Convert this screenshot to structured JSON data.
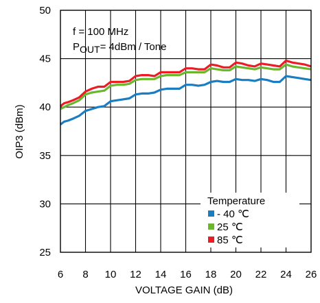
{
  "chart_data": {
    "type": "line",
    "xlabel": "VOLTAGE GAIN (dB)",
    "ylabel": "OIP3 (dBm)",
    "xlim": [
      6,
      26
    ],
    "ylim": [
      25,
      50
    ],
    "xticks": [
      "6",
      "8",
      "10",
      "12",
      "14",
      "16",
      "18",
      "20",
      "22",
      "24",
      "26"
    ],
    "yticks": [
      "25",
      "30",
      "35",
      "40",
      "45",
      "50"
    ],
    "grid": true,
    "annotations": {
      "line1": "f = 100 MHz",
      "line2_main": "P",
      "line2_sub": "OUT",
      "line2_rest": "= 4dBm / Tone"
    },
    "legend": {
      "title": "Temperature",
      "placement": "bottom-right"
    },
    "series": [
      {
        "name": "- 40 ℃",
        "color": "#1a7dc2",
        "x": [
          6,
          6.3,
          6.6,
          7,
          7.5,
          8,
          8.5,
          9,
          9.5,
          10,
          10.5,
          11,
          11.5,
          12,
          12.5,
          13,
          13.5,
          14,
          14.5,
          15,
          15.5,
          16,
          16.5,
          17,
          17.5,
          18,
          18.5,
          19,
          19.5,
          20,
          20.5,
          21,
          21.5,
          22,
          22.5,
          23,
          23.5,
          24,
          24.5,
          25,
          25.5,
          26
        ],
        "y": [
          38.2,
          38.5,
          38.6,
          38.8,
          39.1,
          39.6,
          39.8,
          40.0,
          40.1,
          40.6,
          40.7,
          40.8,
          40.9,
          41.3,
          41.4,
          41.4,
          41.5,
          41.8,
          41.9,
          41.9,
          41.9,
          42.3,
          42.3,
          42.2,
          42.3,
          42.6,
          42.7,
          42.6,
          42.6,
          42.9,
          42.8,
          42.8,
          42.7,
          42.9,
          42.8,
          42.6,
          42.6,
          43.2,
          43.1,
          43.0,
          42.9,
          42.8
        ]
      },
      {
        "name": "25 ℃",
        "color": "#6ab62d",
        "x": [
          6,
          6.3,
          6.6,
          7,
          7.5,
          8,
          8.5,
          9,
          9.5,
          10,
          10.5,
          11,
          11.5,
          12,
          12.5,
          13,
          13.5,
          14,
          14.5,
          15,
          15.5,
          16,
          16.5,
          17,
          17.5,
          18,
          18.5,
          19,
          19.5,
          20,
          20.5,
          21,
          21.5,
          22,
          22.5,
          23,
          23.5,
          24,
          24.5,
          25,
          25.5,
          26
        ],
        "y": [
          39.8,
          40.0,
          40.2,
          40.4,
          40.7,
          41.3,
          41.5,
          41.6,
          41.7,
          42.2,
          42.3,
          42.3,
          42.4,
          42.8,
          42.9,
          42.9,
          42.9,
          43.2,
          43.3,
          43.3,
          43.3,
          43.6,
          43.6,
          43.6,
          43.6,
          44.0,
          43.9,
          43.8,
          43.8,
          44.2,
          44.1,
          44.0,
          43.9,
          44.1,
          44.0,
          43.9,
          43.9,
          44.4,
          44.2,
          44.1,
          44.0,
          43.9
        ]
      },
      {
        "name": "85 ℃",
        "color": "#ec1c24",
        "x": [
          6,
          6.3,
          6.6,
          7,
          7.5,
          8,
          8.5,
          9,
          9.5,
          10,
          10.5,
          11,
          11.5,
          12,
          12.5,
          13,
          13.5,
          14,
          14.5,
          15,
          15.5,
          16,
          16.5,
          17,
          17.5,
          18,
          18.5,
          19,
          19.5,
          20,
          20.5,
          21,
          21.5,
          22,
          22.5,
          23,
          23.5,
          24,
          24.5,
          25,
          25.5,
          26
        ],
        "y": [
          40.1,
          40.4,
          40.5,
          40.7,
          41.0,
          41.6,
          41.9,
          42.1,
          42.1,
          42.6,
          42.6,
          42.6,
          42.7,
          43.2,
          43.3,
          43.3,
          43.2,
          43.6,
          43.6,
          43.6,
          43.6,
          44.0,
          44.0,
          43.9,
          43.9,
          44.4,
          44.3,
          44.1,
          44.1,
          44.6,
          44.5,
          44.3,
          44.2,
          44.5,
          44.4,
          44.3,
          44.2,
          44.8,
          44.6,
          44.5,
          44.4,
          44.2
        ]
      }
    ]
  }
}
